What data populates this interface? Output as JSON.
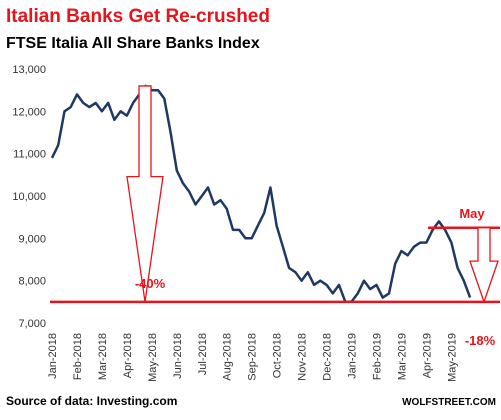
{
  "chart_data": {
    "type": "line",
    "title": "Italian Banks Get Re-crushed",
    "subtitle": "FTSE Italia All Share Banks Index",
    "source": "Source of data: Investing.com",
    "brand": "WOLFSTREET.COM",
    "categories": [
      "Jan-2018",
      null,
      null,
      null,
      "Feb-2018",
      null,
      null,
      null,
      "Mar-2018",
      null,
      null,
      null,
      "Apr-2018",
      null,
      null,
      null,
      "May-2018",
      null,
      null,
      null,
      "Jun-2018",
      null,
      null,
      null,
      "Jul-2018",
      null,
      null,
      null,
      "Aug-2018",
      null,
      null,
      null,
      "Sep-2018",
      null,
      null,
      null,
      "Oct-2018",
      null,
      null,
      null,
      "Nov-2018",
      null,
      null,
      null,
      "Dec-2018",
      null,
      null,
      null,
      "Jan-2019",
      null,
      null,
      null,
      "Feb-2019",
      null,
      null,
      null,
      "Mar-2019",
      null,
      null,
      null,
      "Apr-2019",
      null,
      null,
      null,
      "May-2019",
      null,
      null,
      null
    ],
    "series": [
      {
        "name": "FTSE Italia All Share Banks",
        "color": "#1f3864",
        "values": [
          10900,
          11200,
          12000,
          12100,
          12400,
          12200,
          12100,
          12200,
          12000,
          12200,
          11800,
          12000,
          11900,
          12200,
          12400,
          12600,
          12500,
          12500,
          12300,
          11500,
          10600,
          10300,
          10100,
          9800,
          10000,
          10200,
          9800,
          9900,
          9700,
          9200,
          9200,
          9000,
          9000,
          9300,
          9600,
          10200,
          9300,
          8800,
          8300,
          8200,
          8000,
          8200,
          7900,
          8000,
          7900,
          7700,
          7900,
          7500,
          7500,
          7700,
          8000,
          7800,
          7900,
          7600,
          7700,
          8400,
          8700,
          8600,
          8800,
          8900,
          8900,
          9200,
          9400,
          9200,
          8900,
          8300,
          8000,
          7600
        ]
      }
    ],
    "ylim": [
      7000,
      13000
    ],
    "yticks": [
      {
        "value": 7000,
        "label": "7,000"
      },
      {
        "value": 8000,
        "label": "8,000"
      },
      {
        "value": 9000,
        "label": "9,000"
      },
      {
        "value": 10000,
        "label": "10,000"
      },
      {
        "value": 11000,
        "label": "11,000"
      },
      {
        "value": 12000,
        "label": "12,000"
      },
      {
        "value": 13000,
        "label": "13,000"
      }
    ],
    "grid": false,
    "annotation_color": "#e8141c",
    "reference_line": 7500,
    "annotations": [
      {
        "text": "-40%",
        "from": 12600,
        "to": 7500
      },
      {
        "text": "-18%",
        "from": 9250,
        "to": 7500,
        "label": "May"
      }
    ]
  }
}
